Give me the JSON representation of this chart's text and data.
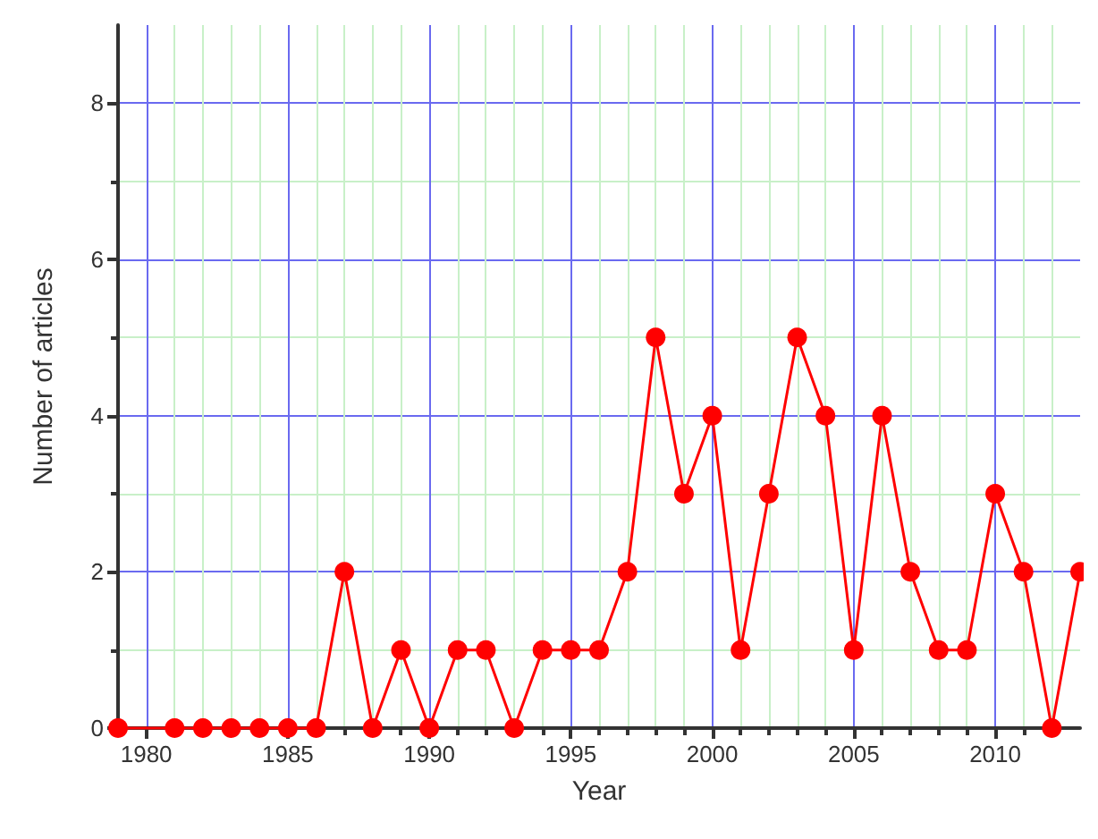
{
  "chart_data": {
    "type": "line",
    "xlabel": "Year",
    "ylabel": "Number of articles",
    "x": [
      1979,
      1981,
      1982,
      1983,
      1984,
      1985,
      1986,
      1987,
      1988,
      1989,
      1990,
      1991,
      1992,
      1993,
      1994,
      1995,
      1996,
      1997,
      1998,
      1999,
      2000,
      2001,
      2002,
      2003,
      2004,
      2005,
      2006,
      2007,
      2008,
      2009,
      2010,
      2011,
      2012,
      2013
    ],
    "series": [
      {
        "color": "#ff0000",
        "values": [
          0,
          0,
          0,
          0,
          0,
          0,
          0,
          2,
          0,
          1,
          0,
          1,
          1,
          0,
          1,
          1,
          1,
          2,
          5,
          3,
          4,
          1,
          3,
          5,
          4,
          1,
          4,
          2,
          1,
          1,
          3,
          2,
          0,
          2
        ]
      }
    ],
    "xlim": [
      1979,
      2013
    ],
    "xticks": [
      1980,
      1985,
      1990,
      1995,
      2000,
      2005,
      2010
    ],
    "ylim": [
      0,
      9
    ],
    "yticks": [
      0,
      2,
      4,
      6,
      8
    ],
    "grid": true,
    "marker": "circle",
    "line_style": "solid"
  }
}
